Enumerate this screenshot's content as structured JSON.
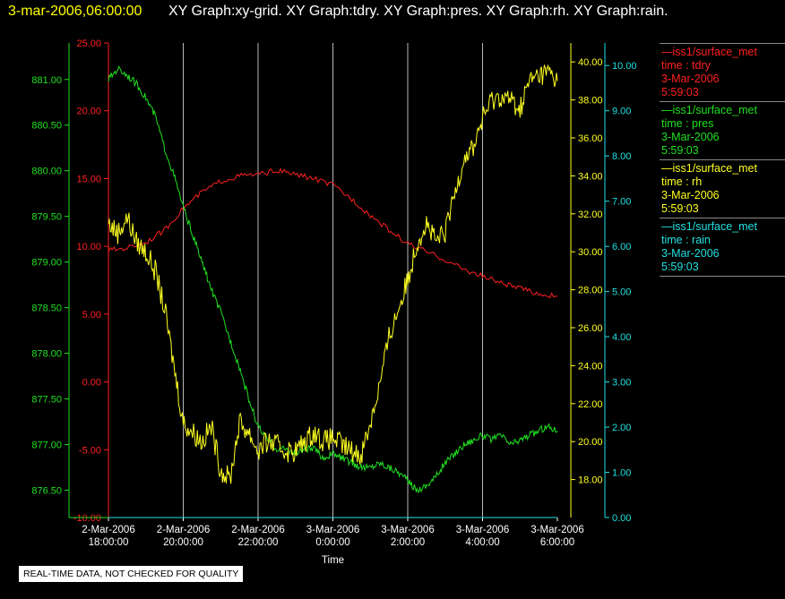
{
  "header": {
    "timestamp": "3-mar-2006,06:00:00",
    "titles": "XY Graph:xy-grid.  XY Graph:tdry.  XY Graph:pres.  XY Graph:rh.  XY Graph:rain."
  },
  "notice": "REAL-TIME DATA, NOT CHECKED FOR QUALITY",
  "legend": [
    {
      "source": "—iss1/surface_met",
      "var": "time : tdry",
      "date": "3-Mar-2006",
      "time": "5:59:03",
      "color": "#ff2020"
    },
    {
      "source": "—iss1/surface_met",
      "var": "time : pres",
      "date": "3-Mar-2006",
      "time": "5:59:03",
      "color": "#20e020"
    },
    {
      "source": "—iss1/surface_met",
      "var": "time : rh",
      "date": "3-Mar-2006",
      "time": "5:59:03",
      "color": "#ffff20"
    },
    {
      "source": "—iss1/surface_met",
      "var": "time : rain",
      "date": "3-Mar-2006",
      "time": "5:59:03",
      "color": "#20e0e0"
    }
  ],
  "chart_data": {
    "type": "line",
    "xlabel": "Time",
    "x_ticks": [
      {
        "line1": "2-Mar-2006",
        "line2": "18:00:00"
      },
      {
        "line1": "2-Mar-2006",
        "line2": "20:00:00"
      },
      {
        "line1": "2-Mar-2006",
        "line2": "22:00:00"
      },
      {
        "line1": "3-Mar-2006",
        "line2": "0:00:00"
      },
      {
        "line1": "3-Mar-2006",
        "line2": "2:00:00"
      },
      {
        "line1": "3-Mar-2006",
        "line2": "4:00:00"
      },
      {
        "line1": "3-Mar-2006",
        "line2": "6:00:00"
      }
    ],
    "x_unit": "hours from 2-Mar-2006 18:00:00",
    "xlim": [
      0,
      12
    ],
    "grid": "vertical",
    "axes": {
      "pres": {
        "color": "#20e020",
        "ylim": [
          876.2,
          881.4
        ],
        "ticks": [
          "876.50",
          "877.00",
          "877.50",
          "878.00",
          "878.50",
          "879.00",
          "879.50",
          "880.00",
          "880.50",
          "881.00"
        ]
      },
      "tdry": {
        "color": "#ff2020",
        "ylim": [
          -10,
          25
        ],
        "ticks": [
          "-10.00",
          "-5.00",
          "0.00",
          "5.00",
          "10.00",
          "15.00",
          "20.00",
          "25.00"
        ]
      },
      "rh": {
        "color": "#ffff20",
        "ylim": [
          16,
          41
        ],
        "ticks": [
          "18.00",
          "20.00",
          "22.00",
          "24.00",
          "26.00",
          "28.00",
          "30.00",
          "32.00",
          "34.00",
          "36.00",
          "38.00",
          "40.00"
        ]
      },
      "rain": {
        "color": "#20e0e0",
        "ylim": [
          0,
          10.5
        ],
        "ticks": [
          "0.00",
          "1.00",
          "2.00",
          "3.00",
          "4.00",
          "5.00",
          "6.00",
          "7.00",
          "8.00",
          "9.00",
          "10.00"
        ]
      }
    },
    "series": [
      {
        "name": "tdry",
        "axis": "tdry",
        "color": "#ff2020",
        "x": [
          0,
          0.5,
          1,
          1.5,
          2,
          2.5,
          3,
          3.5,
          4,
          4.5,
          5,
          5.5,
          6,
          6.5,
          7,
          7.5,
          8,
          8.5,
          9,
          9.5,
          10,
          10.5,
          11,
          11.5,
          12
        ],
        "y": [
          9.7,
          9.9,
          10.3,
          11.2,
          12.8,
          14.0,
          14.8,
          15.2,
          15.3,
          15.6,
          15.3,
          15.0,
          14.5,
          13.5,
          12.3,
          11.2,
          10.2,
          9.6,
          9.0,
          8.3,
          7.8,
          7.3,
          6.9,
          6.5,
          6.3
        ]
      },
      {
        "name": "pres",
        "axis": "pres",
        "color": "#20e020",
        "x": [
          0,
          0.25,
          0.5,
          0.75,
          1,
          1.25,
          1.5,
          1.75,
          2,
          2.25,
          2.5,
          2.75,
          3,
          3.25,
          3.5,
          3.75,
          4,
          4.25,
          4.5,
          4.75,
          5,
          5.25,
          5.5,
          5.75,
          6,
          6.25,
          6.5,
          6.75,
          7,
          7.25,
          7.5,
          7.75,
          8,
          8.25,
          8.5,
          8.75,
          9,
          9.25,
          9.5,
          9.75,
          10,
          10.25,
          10.5,
          10.75,
          11,
          11.25,
          11.5,
          11.75,
          12
        ],
        "y": [
          881.0,
          881.12,
          881.05,
          880.95,
          880.8,
          880.6,
          880.25,
          879.95,
          879.6,
          879.3,
          879.0,
          878.7,
          878.45,
          878.15,
          877.85,
          877.5,
          877.2,
          877.05,
          876.95,
          876.95,
          876.9,
          876.95,
          876.95,
          876.85,
          876.9,
          876.85,
          876.8,
          876.75,
          876.75,
          876.8,
          876.75,
          876.7,
          876.6,
          876.5,
          876.55,
          876.65,
          876.8,
          876.9,
          877.0,
          877.05,
          877.1,
          877.05,
          877.1,
          877.0,
          877.05,
          877.1,
          877.15,
          877.2,
          877.15
        ]
      },
      {
        "name": "rh",
        "axis": "rh",
        "color": "#ffff20",
        "x": [
          0,
          0.25,
          0.5,
          0.75,
          1,
          1.25,
          1.5,
          1.75,
          2,
          2.25,
          2.5,
          2.75,
          3,
          3.25,
          3.5,
          3.75,
          4,
          4.25,
          4.5,
          4.75,
          5,
          5.25,
          5.5,
          5.75,
          6,
          6.25,
          6.5,
          6.75,
          7,
          7.25,
          7.5,
          7.75,
          8,
          8.25,
          8.5,
          8.75,
          9,
          9.25,
          9.5,
          9.75,
          10,
          10.25,
          10.5,
          10.75,
          11,
          11.25,
          11.5,
          11.75,
          12
        ],
        "y": [
          31.5,
          31.0,
          31.8,
          30.5,
          30.0,
          29.0,
          27.0,
          24.0,
          21.0,
          20.5,
          20.0,
          20.8,
          18.5,
          18.0,
          21.0,
          20.5,
          19.5,
          20.0,
          19.8,
          19.5,
          19.5,
          20.0,
          20.5,
          20.0,
          20.2,
          19.8,
          19.5,
          19.3,
          21.0,
          23.0,
          25.5,
          27.0,
          28.5,
          30.5,
          31.5,
          30.5,
          31.0,
          33.0,
          35.0,
          35.5,
          37.0,
          38.0,
          38.2,
          38.0,
          37.5,
          39.0,
          39.3,
          39.5,
          39.0
        ]
      },
      {
        "name": "rain",
        "axis": "rain",
        "color": "#20e0e0",
        "x": [
          0,
          12
        ],
        "y": [
          0,
          0
        ]
      }
    ]
  }
}
